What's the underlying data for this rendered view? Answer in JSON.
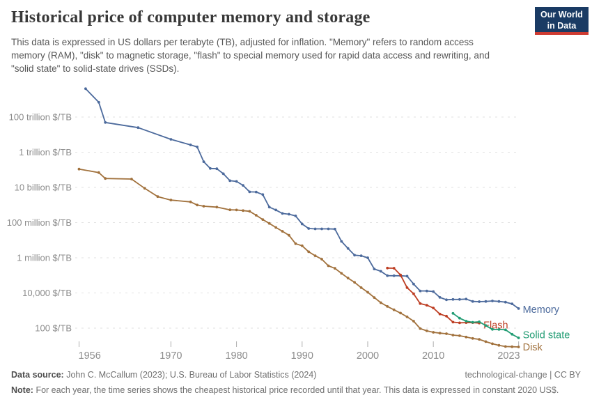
{
  "header": {
    "title": "Historical price of computer memory and storage",
    "subtitle": "This data is expressed in US dollars per terabyte (TB), adjusted for inflation. \"Memory\" refers to random access memory (RAM), \"disk\" to magnetic storage, \"flash\" to special memory used for rapid data access and rewriting, and \"solid state\" to solid-state drives (SSDs).",
    "logo": {
      "line1": "Our World",
      "line2": "in Data",
      "bg_color": "#1a3b64",
      "bar_color": "#ce3b32"
    }
  },
  "chart_data": {
    "type": "line",
    "title": "Historical price of computer memory and storage",
    "xlabel": "",
    "ylabel": "$/TB",
    "grid": true,
    "legend_position": "line-end-labels",
    "x_axis": {
      "range": [
        1955.5,
        2024
      ],
      "ticks": [
        1956,
        1970,
        1980,
        1990,
        2000,
        2010,
        2023
      ]
    },
    "y_axis": {
      "scale": "log",
      "ticks": [
        {
          "value": 100000000000000.0,
          "label": "100 trillion $/TB"
        },
        {
          "value": 1000000000000.0,
          "label": "1 trillion $/TB"
        },
        {
          "value": 10000000000.0,
          "label": "10 billion $/TB"
        },
        {
          "value": 100000000.0,
          "label": "100 million $/TB"
        },
        {
          "value": 1000000.0,
          "label": "1 million $/TB"
        },
        {
          "value": 10000.0,
          "label": "10,000 $/TB"
        },
        {
          "value": 100.0,
          "label": "100 $/TB"
        }
      ]
    },
    "series": [
      {
        "name": "Memory",
        "color": "#4C6A9C",
        "points": [
          [
            1957,
            4100000000000000.0
          ],
          [
            1959,
            690000000000000.0
          ],
          [
            1960,
            49000000000000.0
          ],
          [
            1965,
            25000000000000.0
          ],
          [
            1970,
            5400000000000.0
          ],
          [
            1973,
            2600000000000.0
          ],
          [
            1974,
            2000000000000.0
          ],
          [
            1975,
            290000000000.0
          ],
          [
            1976,
            120000000000.0
          ],
          [
            1977,
            115000000000.0
          ],
          [
            1978,
            60000000000.0
          ],
          [
            1979,
            24000000000.0
          ],
          [
            1980,
            22000000000.0
          ],
          [
            1981,
            13000000000.0
          ],
          [
            1982,
            5600000000.0
          ],
          [
            1983,
            5500000000.0
          ],
          [
            1984,
            3900000000.0
          ],
          [
            1985,
            760000000.0
          ],
          [
            1986,
            520000000.0
          ],
          [
            1987,
            330000000.0
          ],
          [
            1988,
            300000000.0
          ],
          [
            1989,
            240000000.0
          ],
          [
            1990,
            83000000.0
          ],
          [
            1991,
            46000000.0
          ],
          [
            1992,
            44000000.0
          ],
          [
            1993,
            44000000.0
          ],
          [
            1994,
            44000000.0
          ],
          [
            1995,
            43000000.0
          ],
          [
            1996,
            8500000.0
          ],
          [
            1997,
            3400000.0
          ],
          [
            1998,
            1400000.0
          ],
          [
            1999,
            1300000.0
          ],
          [
            2000,
            1000000.0
          ],
          [
            2001,
            230000.0
          ],
          [
            2002,
            170000.0
          ],
          [
            2003,
            96000.0
          ],
          [
            2004,
            95000.0
          ],
          [
            2005,
            95000.0
          ],
          [
            2006,
            90000.0
          ],
          [
            2007,
            32000.0
          ],
          [
            2008,
            13000.0
          ],
          [
            2009,
            13000.0
          ],
          [
            2010,
            12000.0
          ],
          [
            2011,
            5600.0
          ],
          [
            2012,
            4100.0
          ],
          [
            2013,
            4300.0
          ],
          [
            2014,
            4300.0
          ],
          [
            2015,
            4500.0
          ],
          [
            2016,
            3300.0
          ],
          [
            2017,
            3200.0
          ],
          [
            2018,
            3300.0
          ],
          [
            2019,
            3500.0
          ],
          [
            2020,
            3300.0
          ],
          [
            2021,
            3000.0
          ],
          [
            2022,
            2400.0
          ],
          [
            2023,
            1300.0
          ]
        ]
      },
      {
        "name": "Disk",
        "color": "#A1713C",
        "points": [
          [
            1956,
            110000000000.0
          ],
          [
            1959,
            70000000000.0
          ],
          [
            1960,
            32000000000.0
          ],
          [
            1964,
            30000000000.0
          ],
          [
            1966,
            8900000000.0
          ],
          [
            1968,
            3000000000.0
          ],
          [
            1970,
            1900000000.0
          ],
          [
            1973,
            1500000000.0
          ],
          [
            1974,
            1000000000.0
          ],
          [
            1975,
            850000000.0
          ],
          [
            1977,
            760000000.0
          ],
          [
            1979,
            530000000.0
          ],
          [
            1980,
            520000000.0
          ],
          [
            1981,
            480000000.0
          ],
          [
            1982,
            440000000.0
          ],
          [
            1983,
            260000000.0
          ],
          [
            1984,
            150000000.0
          ],
          [
            1985,
            90000000.0
          ],
          [
            1986,
            53000000.0
          ],
          [
            1987,
            32000000.0
          ],
          [
            1988,
            19000000.0
          ],
          [
            1989,
            6300000.0
          ],
          [
            1990,
            4800000.0
          ],
          [
            1991,
            2200000.0
          ],
          [
            1992,
            1300000.0
          ],
          [
            1993,
            830000.0
          ],
          [
            1994,
            350000.0
          ],
          [
            1995,
            250000.0
          ],
          [
            1996,
            130000.0
          ],
          [
            1997,
            70000.0
          ],
          [
            1998,
            40000.0
          ],
          [
            1999,
            20000.0
          ],
          [
            2000,
            11000.0
          ],
          [
            2001,
            5500.0
          ],
          [
            2002,
            2800.0
          ],
          [
            2003,
            1700.0
          ],
          [
            2004,
            1100.0
          ],
          [
            2005,
            720.0
          ],
          [
            2006,
            440.0
          ],
          [
            2007,
            250.0
          ],
          [
            2008,
            95.0
          ],
          [
            2009,
            70.0
          ],
          [
            2010,
            58.0
          ],
          [
            2011,
            52.0
          ],
          [
            2012,
            48.0
          ],
          [
            2013,
            40.0
          ],
          [
            2014,
            37.0
          ],
          [
            2015,
            31.0
          ],
          [
            2016,
            26.0
          ],
          [
            2017,
            23.0
          ],
          [
            2018,
            17.0
          ],
          [
            2019,
            13.0
          ],
          [
            2020,
            10.5
          ],
          [
            2021,
            9.0
          ],
          [
            2022,
            8.8
          ],
          [
            2023,
            8.5
          ]
        ]
      },
      {
        "name": "Flash",
        "color": "#BD3D22",
        "points": [
          [
            2003,
            260000.0
          ],
          [
            2004,
            255000.0
          ],
          [
            2005,
            105000.0
          ],
          [
            2006,
            20000.0
          ],
          [
            2007,
            9000.0
          ],
          [
            2008,
            2500.0
          ],
          [
            2009,
            2000.0
          ],
          [
            2010,
            1400.0
          ],
          [
            2011,
            630.0
          ],
          [
            2012,
            480.0
          ],
          [
            2013,
            220.0
          ],
          [
            2014,
            200.0
          ],
          [
            2015,
            205.0
          ],
          [
            2016,
            205.0
          ],
          [
            2017,
            195.0
          ]
        ]
      },
      {
        "name": "Solid state",
        "color": "#219C73",
        "points": [
          [
            2013,
            690.0
          ],
          [
            2014,
            370.0
          ],
          [
            2015,
            250.0
          ],
          [
            2016,
            215.0
          ],
          [
            2017,
            230.0
          ],
          [
            2018,
            140.0
          ],
          [
            2019,
            85.0
          ],
          [
            2020,
            84.0
          ],
          [
            2021,
            80.0
          ],
          [
            2022,
            45.0
          ],
          [
            2023,
            28.0
          ]
        ]
      }
    ]
  },
  "footer": {
    "source_label": "Data source:",
    "source_text": "John C. McCallum (2023); U.S. Bureau of Labor Statistics (2024)",
    "attribution": "technological-change | CC BY",
    "note_label": "Note:",
    "note_text": "For each year, the time series shows the cheapest historical price recorded until that year. This data is expressed in constant 2020 US$."
  }
}
